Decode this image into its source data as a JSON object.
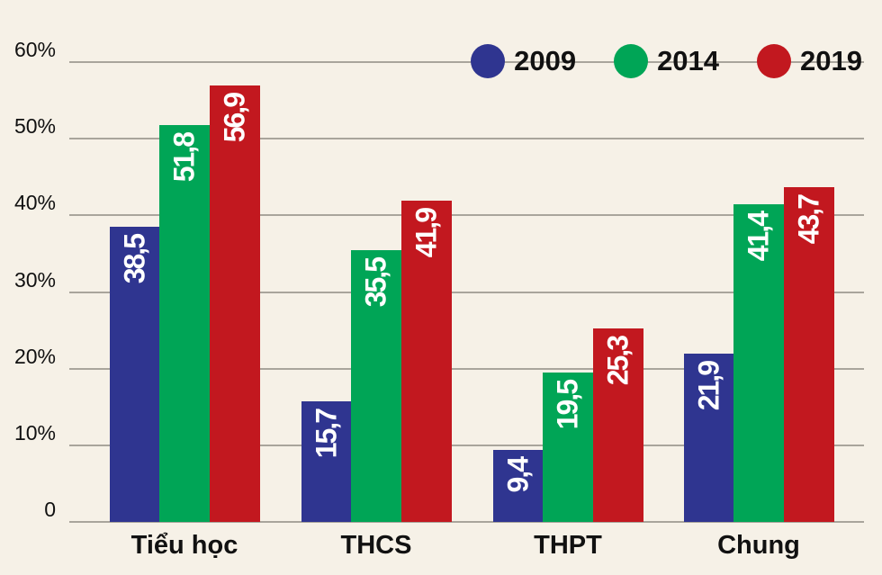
{
  "page": {
    "background": "#f6f1e7",
    "text_color": "#111111",
    "gridline_color": "#a9a59c"
  },
  "legend": {
    "position": "top-right",
    "items": [
      {
        "label": "2009",
        "color": "#2f3590"
      },
      {
        "label": "2014",
        "color": "#00a556"
      },
      {
        "label": "2019",
        "color": "#c2181f"
      }
    ]
  },
  "chart_data": {
    "type": "bar",
    "title": "",
    "xlabel": "",
    "ylabel": "",
    "categories": [
      "Tiểu học",
      "THCS",
      "THPT",
      "Chung"
    ],
    "series": [
      {
        "name": "2009",
        "color": "#2f3590",
        "values": [
          38.5,
          15.7,
          9.4,
          21.9
        ],
        "labels": [
          "38,5",
          "15,7",
          "9,4",
          "21,9"
        ]
      },
      {
        "name": "2014",
        "color": "#00a556",
        "values": [
          51.8,
          35.5,
          19.5,
          41.4
        ],
        "labels": [
          "51,8",
          "35,5",
          "19,5",
          "41,4"
        ]
      },
      {
        "name": "2019",
        "color": "#c2181f",
        "values": [
          56.9,
          41.9,
          25.3,
          43.7
        ],
        "labels": [
          "56,9",
          "41,9",
          "25,3",
          "43,7"
        ]
      }
    ],
    "ylim": [
      0,
      60
    ],
    "yticks": [
      {
        "value": 60,
        "label": "60%"
      },
      {
        "value": 50,
        "label": "50%"
      },
      {
        "value": 40,
        "label": "40%"
      },
      {
        "value": 30,
        "label": "30%"
      },
      {
        "value": 20,
        "label": "20%"
      },
      {
        "value": 10,
        "label": "10%"
      },
      {
        "value": 0,
        "label": "0"
      }
    ],
    "grid": true,
    "legend_position": "top-right",
    "value_label_color": "#ffffff"
  }
}
